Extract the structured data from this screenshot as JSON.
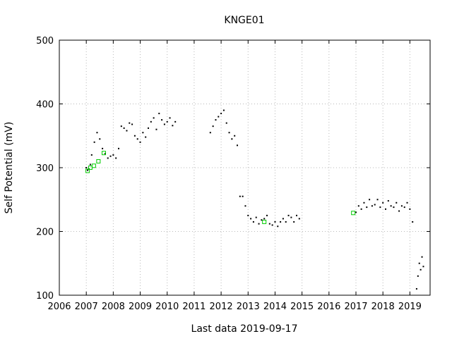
{
  "chart_data": {
    "type": "scatter",
    "title": "KNGE01",
    "xlabel": "Last data 2019-09-17",
    "ylabel": "Self Potential (mV)",
    "xlim": [
      2006,
      2019.75
    ],
    "ylim": [
      100,
      500
    ],
    "x_ticks": [
      "2006",
      "2007",
      "2008",
      "2009",
      "2010",
      "2011",
      "2012",
      "2013",
      "2014",
      "2015",
      "2016",
      "2017",
      "2018",
      "2019"
    ],
    "y_ticks": [
      "100",
      "200",
      "300",
      "400",
      "500"
    ],
    "grid": true,
    "colors": {
      "series_main": "#000000",
      "series_manual": "#00cc00",
      "grid": "#b8b8b8"
    },
    "series": [
      {
        "marker": "dot",
        "points": [
          [
            2007.0,
            300
          ],
          [
            2007.05,
            296
          ],
          [
            2007.1,
            298
          ],
          [
            2007.15,
            305
          ],
          [
            2007.2,
            320
          ],
          [
            2007.3,
            340
          ],
          [
            2007.4,
            355
          ],
          [
            2007.5,
            345
          ],
          [
            2007.6,
            330
          ],
          [
            2007.7,
            322
          ],
          [
            2007.8,
            315
          ],
          [
            2007.9,
            318
          ],
          [
            2008.0,
            320
          ],
          [
            2008.1,
            315
          ],
          [
            2008.2,
            330
          ],
          [
            2008.3,
            365
          ],
          [
            2008.4,
            362
          ],
          [
            2008.5,
            358
          ],
          [
            2008.6,
            370
          ],
          [
            2008.7,
            368
          ],
          [
            2008.8,
            350
          ],
          [
            2008.9,
            345
          ],
          [
            2009.0,
            340
          ],
          [
            2009.1,
            355
          ],
          [
            2009.2,
            348
          ],
          [
            2009.3,
            362
          ],
          [
            2009.4,
            372
          ],
          [
            2009.5,
            378
          ],
          [
            2009.6,
            360
          ],
          [
            2009.7,
            385
          ],
          [
            2009.8,
            375
          ],
          [
            2009.9,
            368
          ],
          [
            2010.0,
            372
          ],
          [
            2010.1,
            378
          ],
          [
            2010.2,
            366
          ],
          [
            2010.3,
            372
          ],
          [
            2011.6,
            355
          ],
          [
            2011.7,
            365
          ],
          [
            2011.8,
            375
          ],
          [
            2011.9,
            380
          ],
          [
            2012.0,
            385
          ],
          [
            2012.1,
            390
          ],
          [
            2012.2,
            370
          ],
          [
            2012.3,
            355
          ],
          [
            2012.4,
            345
          ],
          [
            2012.5,
            350
          ],
          [
            2012.6,
            335
          ],
          [
            2012.7,
            255
          ],
          [
            2012.8,
            255
          ],
          [
            2012.9,
            240
          ],
          [
            2013.0,
            225
          ],
          [
            2013.1,
            220
          ],
          [
            2013.2,
            215
          ],
          [
            2013.3,
            222
          ],
          [
            2013.4,
            212
          ],
          [
            2013.5,
            218
          ],
          [
            2013.6,
            220
          ],
          [
            2013.7,
            225
          ],
          [
            2013.8,
            212
          ],
          [
            2013.9,
            210
          ],
          [
            2014.0,
            215
          ],
          [
            2014.1,
            208
          ],
          [
            2014.2,
            215
          ],
          [
            2014.3,
            220
          ],
          [
            2014.4,
            215
          ],
          [
            2014.5,
            225
          ],
          [
            2014.6,
            222
          ],
          [
            2014.7,
            215
          ],
          [
            2014.8,
            225
          ],
          [
            2014.9,
            220
          ],
          [
            2017.0,
            230
          ],
          [
            2017.1,
            240
          ],
          [
            2017.2,
            235
          ],
          [
            2017.3,
            245
          ],
          [
            2017.4,
            238
          ],
          [
            2017.5,
            250
          ],
          [
            2017.6,
            240
          ],
          [
            2017.7,
            242
          ],
          [
            2017.8,
            250
          ],
          [
            2017.9,
            238
          ],
          [
            2018.0,
            245
          ],
          [
            2018.1,
            235
          ],
          [
            2018.2,
            248
          ],
          [
            2018.3,
            240
          ],
          [
            2018.4,
            238
          ],
          [
            2018.5,
            245
          ],
          [
            2018.6,
            232
          ],
          [
            2018.7,
            240
          ],
          [
            2018.8,
            238
          ],
          [
            2018.9,
            245
          ],
          [
            2019.0,
            235
          ],
          [
            2019.1,
            215
          ],
          [
            2019.25,
            110
          ],
          [
            2019.3,
            130
          ],
          [
            2019.35,
            150
          ],
          [
            2019.4,
            140
          ],
          [
            2019.45,
            160
          ],
          [
            2019.5,
            145
          ]
        ]
      },
      {
        "marker": "square",
        "points": [
          [
            2007.05,
            295
          ],
          [
            2007.15,
            300
          ],
          [
            2007.28,
            303
          ],
          [
            2007.45,
            310
          ],
          [
            2007.65,
            323
          ],
          [
            2013.6,
            215
          ],
          [
            2016.9,
            229
          ]
        ]
      }
    ]
  }
}
